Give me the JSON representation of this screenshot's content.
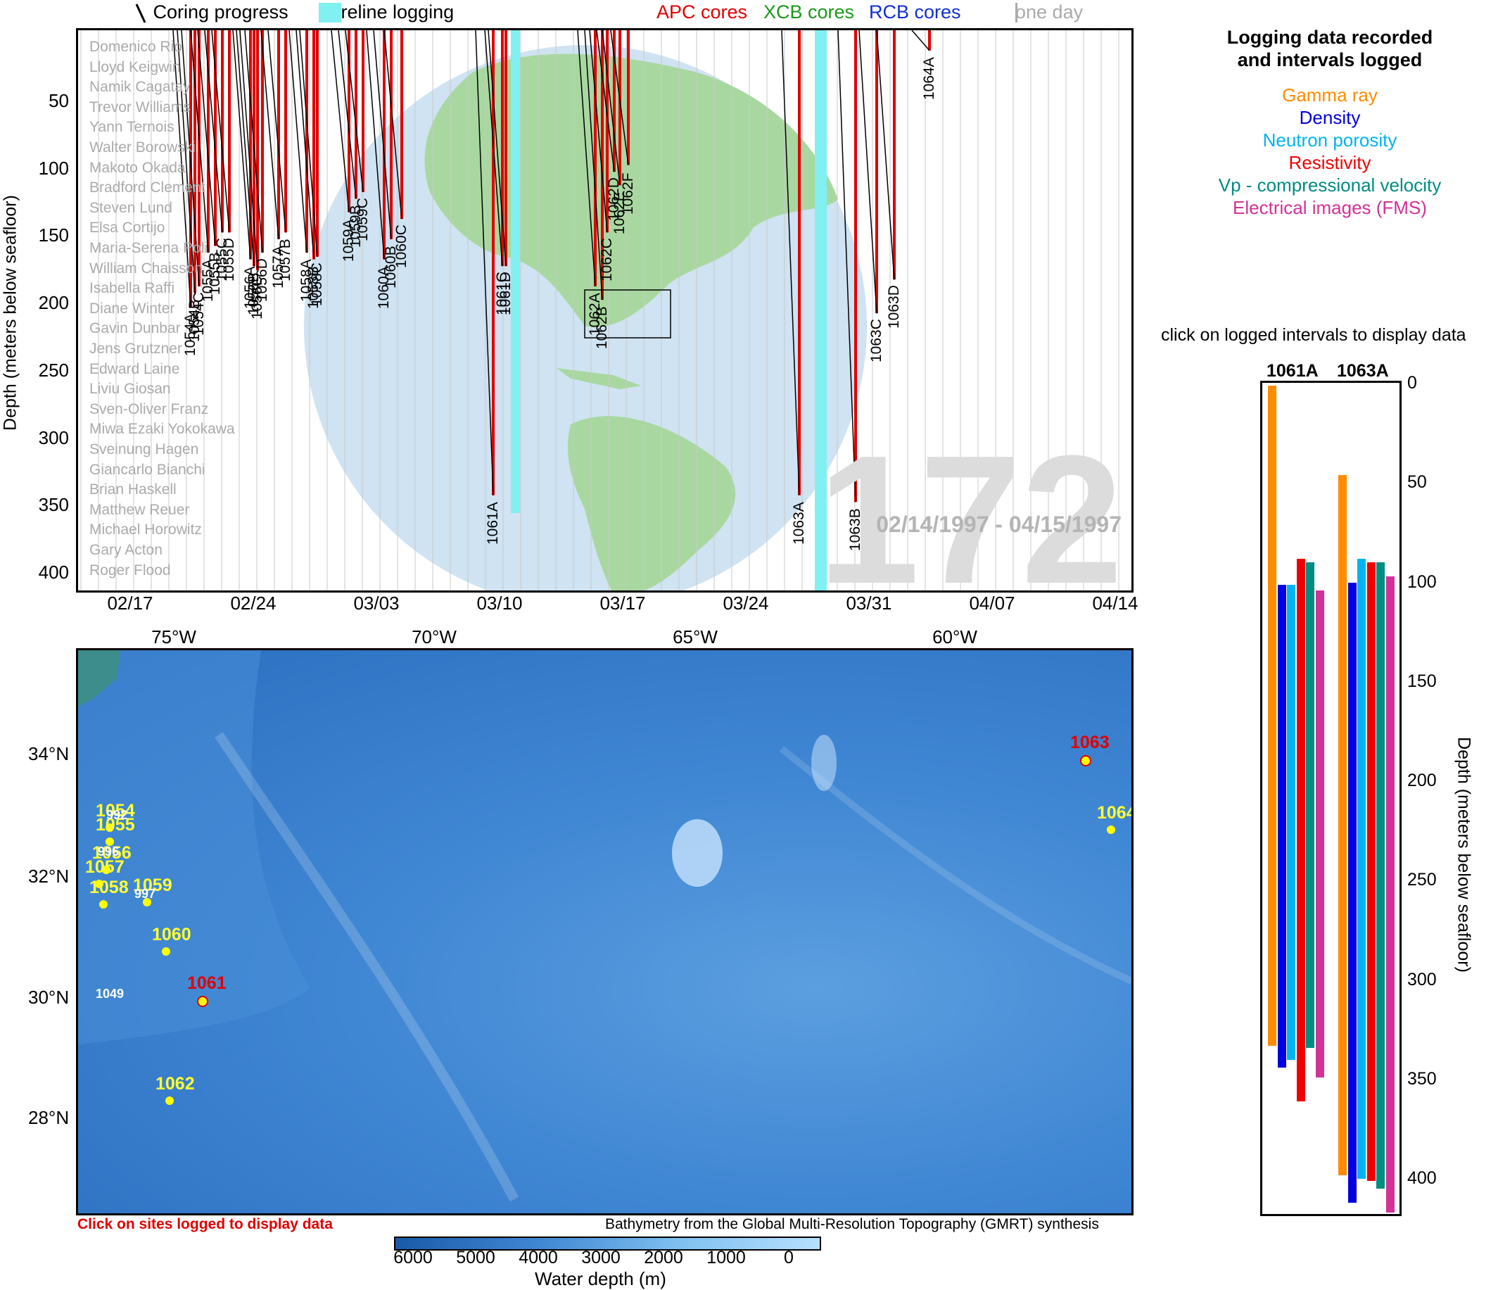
{
  "legend": {
    "coring": "Coring progress",
    "wireline": "Wireline logging",
    "apc": "APC cores",
    "xcb": "XCB cores",
    "rcb": "RCB cores",
    "oneday": "one day",
    "colors": {
      "apc": "#e00000",
      "xcb": "#1a9a1a",
      "rcb": "#1030d0",
      "wireline": "#80f0f0"
    }
  },
  "timeline": {
    "y_label": "Depth (meters below seafloor)",
    "y_ticks": [
      "50",
      "100",
      "150",
      "200",
      "250",
      "300",
      "350",
      "400"
    ],
    "x_ticks": [
      "02/17",
      "02/24",
      "03/03",
      "03/10",
      "03/17",
      "03/24",
      "03/31",
      "04/07",
      "04/14"
    ],
    "expedition": "172",
    "date_range": "02/14/1997 - 04/15/1997",
    "scientists": [
      "Domenico Rio",
      "Lloyd Keigwin",
      "Namik Cagatay",
      "Trevor Williams",
      "Yann Ternois",
      "Walter Borowski",
      "Makoto Okada",
      "Bradford Clement",
      "Steven Lund",
      "Elsa Cortijo",
      "Maria-Serena Poli",
      "William Chaisson",
      "Isabella Raffi",
      "Diane Winter",
      "Gavin Dunbar",
      "Jens Grutzner",
      "Edward Laine",
      "Liviu Giosan",
      "Sven-Oliver Franz",
      "Miwa Ezaki Yokokawa",
      "Sveinung Hagen",
      "Giancarlo Bianchi",
      "Brian Haskell",
      "Matthew Reuer",
      "Michael Horowitz",
      "Gary Acton",
      "Roger Flood"
    ],
    "holes": [
      "1054A",
      "1054B",
      "1054C",
      "1055A",
      "1055B",
      "1055C",
      "1055D",
      "1056A",
      "1056B",
      "1056C",
      "1056D",
      "1057A",
      "1057B",
      "1058A",
      "1058B",
      "1058C",
      "1059A",
      "1059B",
      "1059C",
      "1060A",
      "1060B",
      "1060C",
      "1061A",
      "1061C",
      "1061D",
      "1062A",
      "1062B",
      "1062C",
      "1062D",
      "1062E",
      "1062F",
      "1063A",
      "1063B",
      "1063C",
      "1063D",
      "1064A"
    ]
  },
  "map": {
    "lon_ticks": [
      "75°W",
      "70°W",
      "65°W",
      "60°W"
    ],
    "lat_ticks": [
      "34°N",
      "32°N",
      "30°N",
      "28°N"
    ],
    "sites": [
      "1054",
      "1055",
      "1056",
      "1057",
      "1058",
      "1059",
      "1060",
      "1061",
      "1062",
      "1063",
      "1064"
    ],
    "small_labels": [
      "992",
      "996",
      "997",
      "1049"
    ],
    "caption_left": "Click on sites logged to display data",
    "caption_right": "Bathymetry from the Global Multi-Resolution Topography (GMRT) synthesis",
    "colorbar_ticks": [
      "6000",
      "5000",
      "4000",
      "3000",
      "2000",
      "1000",
      "0"
    ],
    "colorbar_label": "Water depth (m)"
  },
  "log_panel": {
    "title_line1": "Logging data recorded",
    "title_line2": "and intervals logged",
    "legend": [
      {
        "label": "Gamma ray",
        "color": "#ff8c00"
      },
      {
        "label": "Density",
        "color": "#0000e0"
      },
      {
        "label": "Neutron porosity",
        "color": "#00b4f0"
      },
      {
        "label": "Resistivity",
        "color": "#f00000"
      },
      {
        "label": "Vp - compressional velocity",
        "color": "#008c80"
      },
      {
        "label": "Electrical images (FMS)",
        "color": "#d23296"
      }
    ],
    "instruction": "click on logged intervals to display data",
    "holes": [
      "1061A",
      "1063A"
    ],
    "depth_ticks": [
      "0",
      "50",
      "100",
      "150",
      "200",
      "250",
      "300",
      "350",
      "400"
    ],
    "y_label": "Depth (meters below seafloor)",
    "intervals": [
      {
        "hole": "1061A",
        "log": "Gamma ray",
        "top": 0,
        "bottom": 332
      },
      {
        "hole": "1061A",
        "log": "Density",
        "top": 100,
        "bottom": 343
      },
      {
        "hole": "1061A",
        "log": "Neutron porosity",
        "top": 100,
        "bottom": 339
      },
      {
        "hole": "1061A",
        "log": "Resistivity",
        "top": 87,
        "bottom": 360
      },
      {
        "hole": "1061A",
        "log": "Vp - compressional velocity",
        "top": 89,
        "bottom": 333
      },
      {
        "hole": "1061A",
        "log": "Electrical images (FMS)",
        "top": 103,
        "bottom": 348
      },
      {
        "hole": "1063A",
        "log": "Gamma ray",
        "top": 45,
        "bottom": 397
      },
      {
        "hole": "1063A",
        "log": "Density",
        "top": 99,
        "bottom": 411
      },
      {
        "hole": "1063A",
        "log": "Neutron porosity",
        "top": 87,
        "bottom": 399
      },
      {
        "hole": "1063A",
        "log": "Resistivity",
        "top": 89,
        "bottom": 400
      },
      {
        "hole": "1063A",
        "log": "Vp - compressional velocity",
        "top": 89,
        "bottom": 404
      },
      {
        "hole": "1063A",
        "log": "Electrical images (FMS)",
        "top": 96,
        "bottom": 416
      }
    ]
  }
}
